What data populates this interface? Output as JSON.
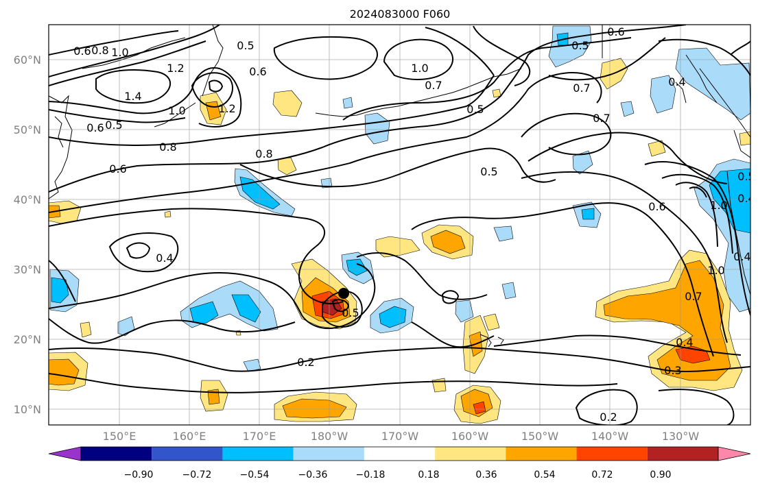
{
  "title": "2024083000 F060",
  "lat_labels": [
    "60°N",
    "50°N",
    "40°N",
    "30°N",
    "20°N",
    "10°N"
  ],
  "lon_labels": [
    "150°E",
    "160°E",
    "170°E",
    "180°W",
    "170°W",
    "160°W",
    "150°W",
    "140°W",
    "130°W"
  ],
  "colorbar": {
    "ticks": [
      "−0.90",
      "−0.72",
      "−0.54",
      "−0.36",
      "−0.18",
      "0.18",
      "0.36",
      "0.54",
      "0.72",
      "0.90"
    ],
    "colors": [
      "#9933cc",
      "#000080",
      "#3355cc",
      "#00bfff",
      "#aadcfa",
      "#ffffff",
      "#ffe680",
      "#ffa500",
      "#ff4400",
      "#b22222",
      "#ff88aa"
    ]
  },
  "contour_labels": [
    "0.6",
    "0.8",
    "1.0",
    "1.2",
    "1.4",
    "0.5",
    "0.6",
    "1.2",
    "1.0",
    "0.8",
    "0.6",
    "0.4",
    "0.8",
    "1.0",
    "0.7",
    "0.5",
    "0.6",
    "0.7",
    "0.7",
    "0.5",
    "0.5",
    "0.6",
    "1.0",
    "0.4",
    "0.5",
    "0.6",
    "0.4",
    "0.5",
    "0.2",
    "0.4",
    "0.3",
    "0.7",
    "1.0",
    "0.2",
    "0.5",
    "0.4"
  ]
}
